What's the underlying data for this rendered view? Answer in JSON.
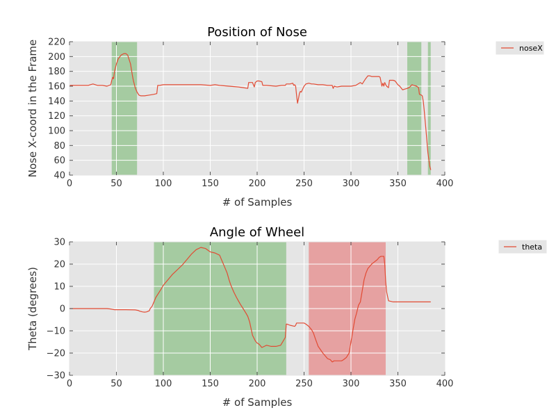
{
  "chart_data": [
    {
      "type": "line",
      "title": "Position of Nose",
      "xlabel": "# of Samples",
      "ylabel": "Nose X-coord in the Frame",
      "xlim": [
        0,
        400
      ],
      "ylim": [
        40,
        220
      ],
      "xticks": [
        0,
        50,
        100,
        150,
        200,
        250,
        300,
        350,
        400
      ],
      "yticks": [
        40,
        60,
        80,
        100,
        120,
        140,
        160,
        180,
        200,
        220
      ],
      "grid": true,
      "legend": "right",
      "shaded_regions": [
        {
          "x0": 45,
          "x1": 72,
          "color": "#8fc18a"
        },
        {
          "x0": 360,
          "x1": 375,
          "color": "#8fc18a"
        },
        {
          "x0": 382,
          "x1": 385,
          "color": "#8fc18a"
        }
      ],
      "series": [
        {
          "name": "noseX",
          "color": "#e24a33",
          "x": [
            0,
            10,
            20,
            22,
            25,
            30,
            35,
            40,
            44,
            45,
            46,
            47,
            48,
            50,
            52,
            55,
            58,
            60,
            62,
            65,
            67,
            68,
            70,
            72,
            74,
            76,
            78,
            80,
            85,
            90,
            93,
            94,
            96,
            100,
            110,
            120,
            130,
            140,
            150,
            155,
            160,
            170,
            180,
            185,
            190,
            191,
            192,
            195,
            197,
            198,
            200,
            202,
            205,
            206,
            210,
            220,
            226,
            230,
            231,
            232,
            235,
            238,
            239,
            240,
            241,
            242,
            243,
            244,
            245,
            246,
            247,
            250,
            252,
            255,
            258,
            260,
            265,
            270,
            275,
            280,
            281,
            282,
            285,
            290,
            300,
            305,
            310,
            312,
            315,
            318,
            320,
            322,
            325,
            330,
            331,
            332,
            333,
            334,
            335,
            336,
            337,
            338,
            340,
            341,
            345,
            347,
            350,
            352,
            355,
            357,
            360,
            362,
            365,
            367,
            370,
            372,
            373,
            375,
            376,
            377,
            378,
            380,
            382,
            384,
            385
          ],
          "y": [
            161,
            161,
            161,
            162,
            163,
            161,
            161,
            160,
            162,
            168,
            172,
            170,
            180,
            190,
            197,
            202,
            204,
            204,
            202,
            190,
            175,
            168,
            158,
            152,
            148,
            147,
            147,
            147,
            148,
            149,
            150,
            161,
            161,
            162,
            162,
            162,
            162,
            162,
            161,
            162,
            161,
            160,
            159,
            158,
            157,
            165,
            165,
            165,
            159,
            165,
            167,
            167,
            166,
            161,
            161,
            160,
            161,
            161,
            163,
            163,
            163,
            164,
            161,
            162,
            160,
            148,
            137,
            143,
            150,
            153,
            152,
            160,
            163,
            164,
            163,
            163,
            162,
            162,
            161,
            161,
            157,
            160,
            159,
            160,
            160,
            161,
            165,
            163,
            169,
            174,
            174,
            173,
            173,
            173,
            172,
            166,
            160,
            164,
            160,
            165,
            162,
            160,
            158,
            168,
            168,
            167,
            162,
            160,
            155,
            156,
            157,
            158,
            162,
            161,
            160,
            158,
            149,
            148,
            147,
            140,
            128,
            100,
            70,
            52,
            47
          ]
        }
      ]
    },
    {
      "type": "line",
      "title": "Angle of Wheel",
      "xlabel": "# of Samples",
      "ylabel": "Theta (degrees)",
      "xlim": [
        0,
        400
      ],
      "ylim": [
        -30,
        30
      ],
      "xticks": [
        0,
        50,
        100,
        150,
        200,
        250,
        300,
        350,
        400
      ],
      "yticks": [
        -30,
        -20,
        -10,
        0,
        10,
        20,
        30
      ],
      "ytick_labels": [
        "−30",
        "−20",
        "−10",
        "0",
        "10",
        "20",
        "30"
      ],
      "grid": true,
      "legend": "right",
      "shaded_regions": [
        {
          "x0": 90,
          "x1": 231,
          "color": "#8fc18a"
        },
        {
          "x0": 255,
          "x1": 337,
          "color": "#e68a8a"
        }
      ],
      "series": [
        {
          "name": "theta",
          "color": "#e24a33",
          "x": [
            0,
            20,
            40,
            44,
            48,
            60,
            70,
            73,
            75,
            78,
            80,
            82,
            85,
            86,
            88,
            90,
            92,
            95,
            98,
            100,
            105,
            110,
            115,
            120,
            125,
            130,
            135,
            140,
            145,
            150,
            155,
            160,
            162,
            165,
            168,
            170,
            172,
            175,
            178,
            180,
            182,
            185,
            188,
            190,
            192,
            195,
            198,
            200,
            202,
            205,
            210,
            215,
            220,
            225,
            230,
            231,
            232,
            235,
            240,
            241,
            242,
            245,
            250,
            252,
            255,
            258,
            260,
            262,
            265,
            270,
            275,
            278,
            280,
            282,
            285,
            290,
            292,
            295,
            298,
            300,
            302,
            304,
            306,
            308,
            310,
            312,
            314,
            316,
            318,
            320,
            322,
            325,
            328,
            330,
            332,
            334,
            335,
            336,
            337,
            338,
            340,
            345,
            350,
            360,
            370,
            380,
            385
          ],
          "y": [
            0,
            0,
            0,
            -0.2,
            -0.5,
            -0.5,
            -0.6,
            -0.8,
            -1.2,
            -1.5,
            -1.6,
            -1.5,
            -1.0,
            0.0,
            1.0,
            3.0,
            5.0,
            7.0,
            9.0,
            10.5,
            13.0,
            15.5,
            17.5,
            19.5,
            22.0,
            24.5,
            26.5,
            27.5,
            27.0,
            25.5,
            25.0,
            24.0,
            22.0,
            19.0,
            16.0,
            13.0,
            10.5,
            7.5,
            5.0,
            3.5,
            2.0,
            0.0,
            -2.0,
            -3.5,
            -6.0,
            -12.0,
            -14.5,
            -15.5,
            -16.0,
            -17.5,
            -16.5,
            -17.0,
            -17.0,
            -16.5,
            -13.0,
            -7.0,
            -7.0,
            -7.5,
            -8.0,
            -7.5,
            -6.5,
            -6.5,
            -6.5,
            -7.0,
            -8.0,
            -9.5,
            -11.0,
            -13.5,
            -17.0,
            -20.0,
            -22.5,
            -23.0,
            -24.0,
            -23.5,
            -23.5,
            -23.5,
            -23.0,
            -22.0,
            -20.0,
            -15.0,
            -10.0,
            -5.0,
            -2.0,
            1.5,
            3.0,
            8.0,
            13.0,
            16.0,
            18.0,
            19.0,
            20.0,
            21.0,
            22.0,
            23.0,
            23.5,
            23.5,
            23.5,
            20.0,
            12.0,
            7.5,
            3.5,
            3.0,
            3.0,
            3.0,
            3.0,
            3.0,
            3.0
          ]
        }
      ]
    }
  ]
}
